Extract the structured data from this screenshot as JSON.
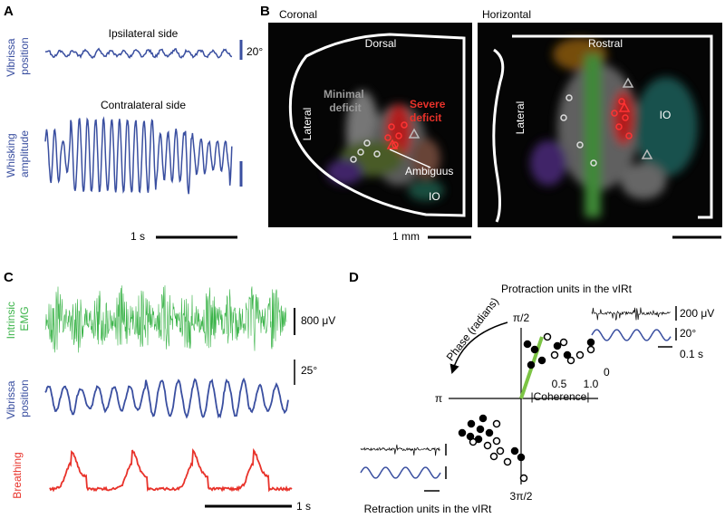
{
  "panel_a": {
    "letter": "A",
    "ipsi_title": "Ipsilateral side",
    "ipsi_ylabel": [
      "Vibrissa",
      "position"
    ],
    "ipsi_scale": "20°",
    "contra_title": "Contralateral side",
    "contra_ylabel": [
      "Whisking",
      "amplitude"
    ],
    "time_scale": "1 s"
  },
  "panel_b": {
    "letter": "B",
    "coronal": {
      "title": "Coronal",
      "dorsal": "Dorsal",
      "lateral": "Lateral",
      "minimal": [
        "Minimal",
        "deficit"
      ],
      "severe": [
        "Severe",
        "deficit"
      ],
      "ambiguus": "Ambiguus",
      "io": "IO",
      "scale": "1 mm"
    },
    "horizontal": {
      "title": "Horizontal",
      "rostral": "Rostral",
      "lateral": "Lateral",
      "io": "IO"
    }
  },
  "panel_c": {
    "letter": "C",
    "emg_label": [
      "Intrinsic",
      "EMG"
    ],
    "emg_scale": "800 μV",
    "position_label": [
      "Vibrissa",
      "position"
    ],
    "position_scale": "25°",
    "breathing_label": "Breathing",
    "time_scale": "1 s"
  },
  "panel_d": {
    "letter": "D",
    "protraction_title": "Protraction units in the vIRt",
    "protraction_scales": [
      "200 μV",
      "20°",
      "0.1 s"
    ],
    "angle_labels": {
      "top": "π/2",
      "left": "π",
      "right": "0",
      "bottom": "3π/2"
    },
    "radius_ticks": [
      "0.5",
      "1.0"
    ],
    "radius_label": "|Coherence|",
    "phase_label": "Phase (radians)",
    "retraction_title": "Retraction units in the vIRt"
  }
}
